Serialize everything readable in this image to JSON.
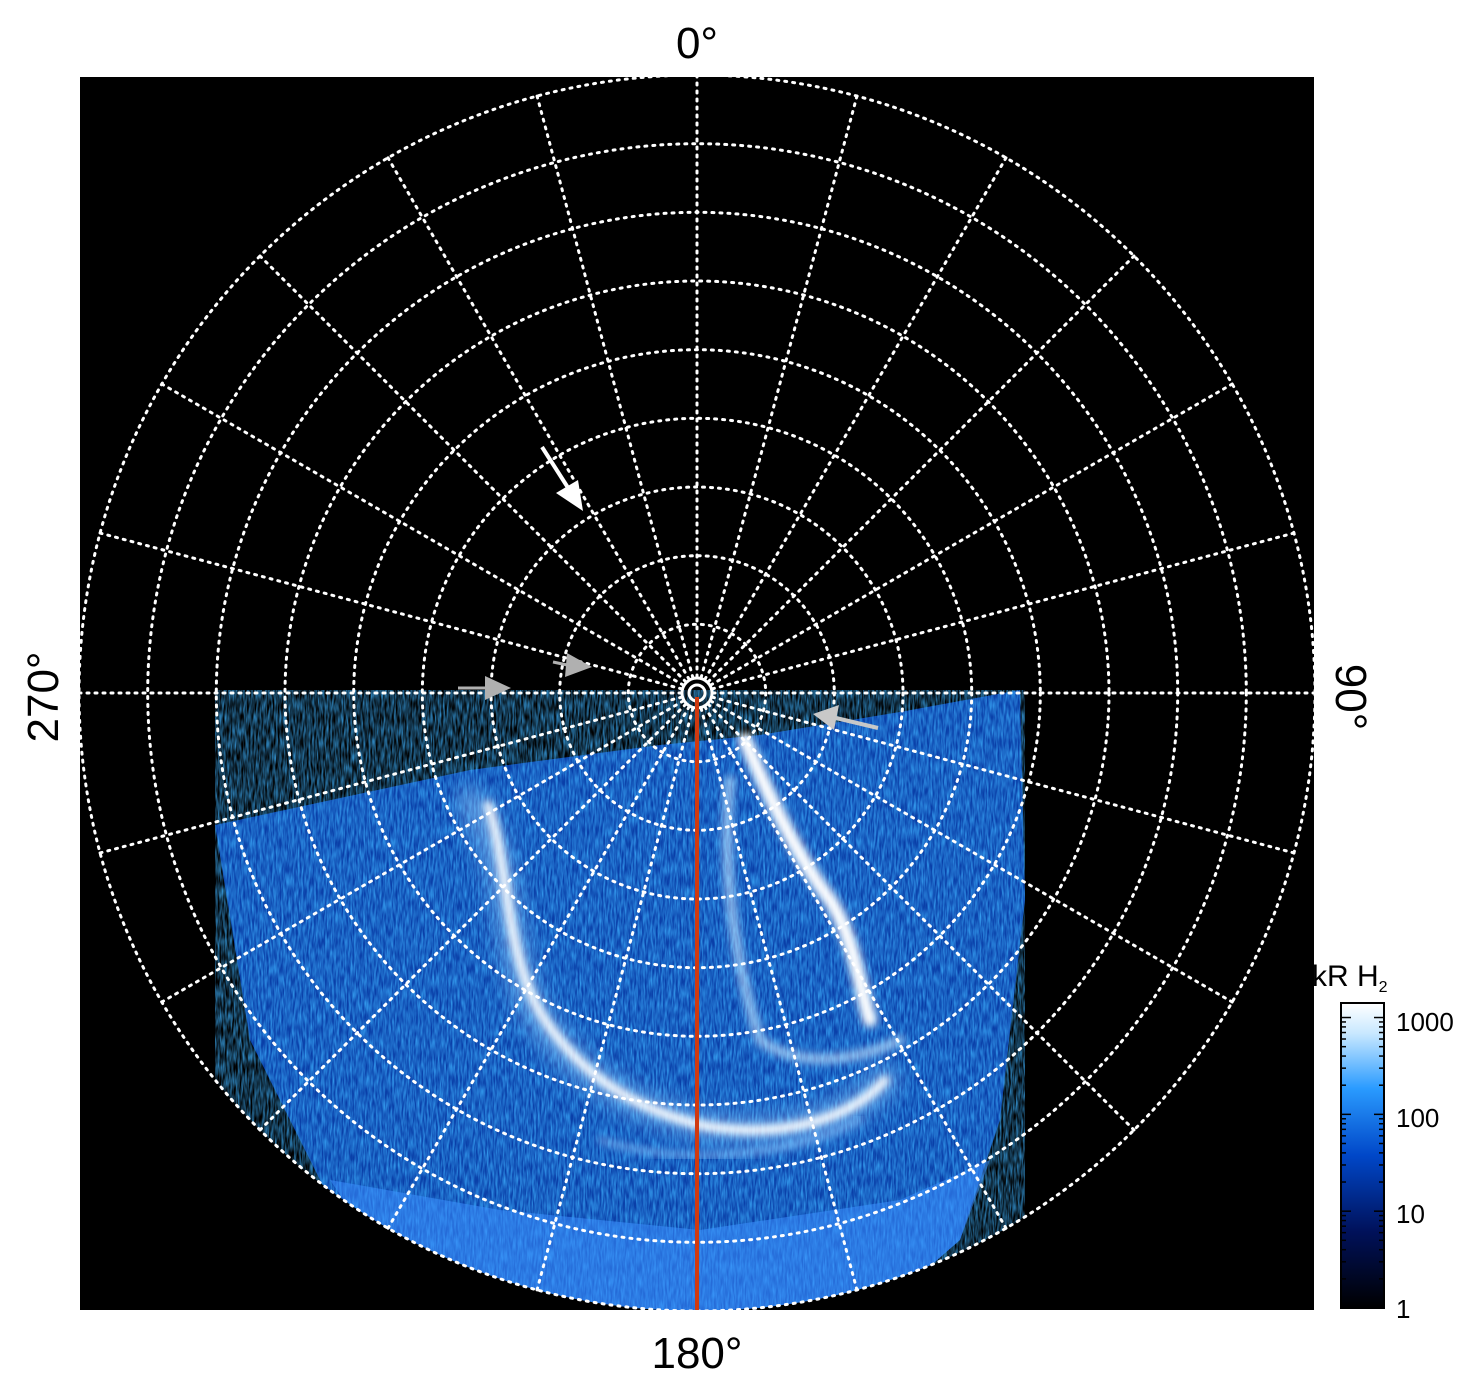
{
  "figure": {
    "angle_labels": {
      "top": "0°",
      "bottom": "180°",
      "left": "270°",
      "right": "90°"
    },
    "colorbar": {
      "title": "kR H",
      "title_subscript": "2",
      "ticks": [
        "1000",
        "100",
        "10",
        "1"
      ],
      "scale": "log",
      "colors": [
        "#000000",
        "#00115a",
        "#0047c8",
        "#2a9bff",
        "#c8e8ff",
        "#ffffff"
      ]
    },
    "colors": {
      "background": "#000000",
      "grid": "#ffffff",
      "meridian": "#d03a10",
      "arrow_white": "#ffffff",
      "arrow_gray": "#b0b0b0"
    },
    "grid": {
      "latitude_rings": 9,
      "longitude_step_deg": 15
    },
    "arrows": [
      {
        "name": "white-arrow",
        "color": "white"
      },
      {
        "name": "gray-arrow-left",
        "color": "gray"
      },
      {
        "name": "gray-arrow-center",
        "color": "gray"
      },
      {
        "name": "gray-arrow-right",
        "color": "gray"
      }
    ]
  }
}
